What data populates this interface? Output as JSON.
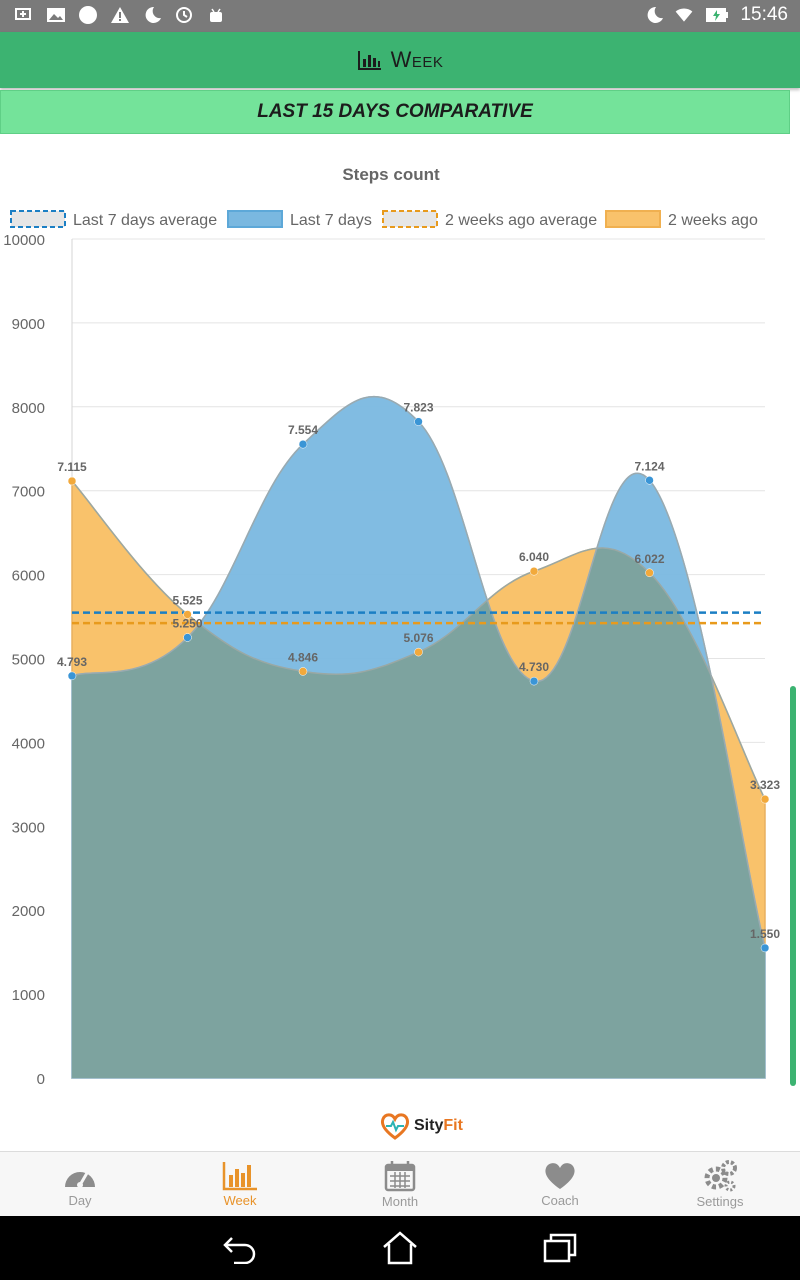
{
  "status_bar": {
    "time": "15:46",
    "icons": [
      "usb-icon",
      "image-icon",
      "circle-icon",
      "warning-icon",
      "moon-icon",
      "sync-icon",
      "android-icon"
    ],
    "right_icons": [
      "moon-icon",
      "wifi-icon",
      "battery-charging-icon"
    ]
  },
  "header": {
    "title": "Week",
    "icon": "bar-chart-icon",
    "color": "#3cb371"
  },
  "band": {
    "text": "LAST 15 DAYS COMPARATIVE",
    "color": "#74e39a"
  },
  "chart_data": {
    "type": "area",
    "title": "Steps count",
    "ylim": [
      0,
      10000
    ],
    "yticks": [
      0,
      1000,
      2000,
      3000,
      4000,
      5000,
      6000,
      7000,
      8000,
      9000,
      10000
    ],
    "grid": true,
    "legend_position": "top",
    "series": [
      {
        "name": "Last 7 days",
        "color": "#7ab8e0",
        "values": [
          4793,
          5250,
          7554,
          7823,
          4730,
          7124,
          1550
        ],
        "labels": [
          "4.793",
          "5.250",
          "7.554",
          "7.823",
          "4.730",
          "7.124",
          "1.550"
        ]
      },
      {
        "name": "2 weeks ago",
        "color": "#f9c26b",
        "values": [
          7115,
          5525,
          4846,
          5076,
          6040,
          6022,
          3323
        ],
        "labels": [
          "7.115",
          "5.525",
          "4.846",
          "5.076",
          "6.040",
          "6.022",
          "3.323"
        ]
      }
    ],
    "averages": [
      {
        "name": "Last 7 days average",
        "color": "#1b7fc4"
      },
      {
        "name": "2 weeks ago average",
        "color": "#e89a1c"
      }
    ],
    "overlap_color": "#7da39f"
  },
  "logo": {
    "text_a": "Sity",
    "text_b": "Fit"
  },
  "bottom_nav": {
    "items": [
      {
        "label": "Day",
        "icon": "gauge-icon",
        "active": false
      },
      {
        "label": "Week",
        "icon": "bar-chart-icon",
        "active": true
      },
      {
        "label": "Month",
        "icon": "calendar-icon",
        "active": false
      },
      {
        "label": "Coach",
        "icon": "heart-icon",
        "active": false
      },
      {
        "label": "Settings",
        "icon": "gears-icon",
        "active": false
      }
    ]
  },
  "system_nav": [
    "back-icon",
    "home-icon",
    "recents-icon"
  ]
}
